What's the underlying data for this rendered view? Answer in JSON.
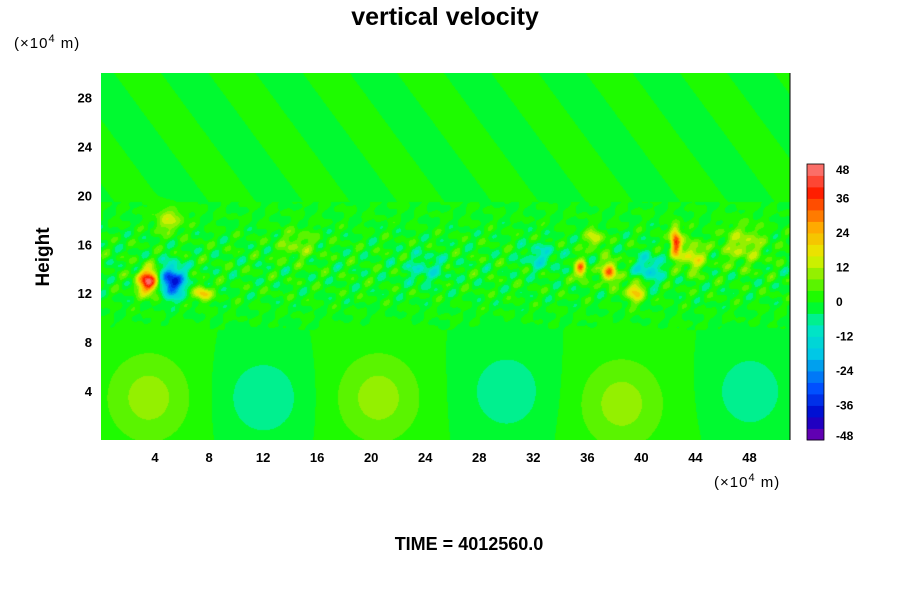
{
  "chart_data": {
    "type": "heatmap",
    "title": "vertical velocity",
    "ylabel": "Height",
    "x_unit_prefix": "(×10",
    "x_unit_exp": "4",
    "x_unit_suffix": " m)",
    "y_unit_prefix": "(×10",
    "y_unit_exp": "4",
    "y_unit_suffix": " m)",
    "xlim": [
      0,
      51
    ],
    "ylim": [
      0,
      30
    ],
    "x_ticks": [
      4,
      8,
      12,
      16,
      20,
      24,
      28,
      32,
      36,
      40,
      44,
      48
    ],
    "y_ticks": [
      4,
      8,
      12,
      16,
      20,
      24,
      28
    ],
    "colorbar": {
      "min": -48,
      "max": 48,
      "step": 4,
      "ticks": [
        48,
        36,
        24,
        12,
        0,
        -12,
        -24,
        -36,
        -48
      ]
    },
    "field_features": [
      {
        "kind": "band",
        "y_min": 9,
        "y_max": 19.5,
        "amplitude": 6
      },
      {
        "kind": "blob",
        "x": 3.5,
        "y": 13,
        "rx": 0.8,
        "ry": 1.0,
        "value": 44
      },
      {
        "kind": "blob",
        "x": 5.2,
        "y": 13,
        "rx": 0.9,
        "ry": 1.2,
        "value": -40
      },
      {
        "kind": "blob",
        "x": 7.5,
        "y": 12,
        "rx": 0.6,
        "ry": 0.6,
        "value": 24
      },
      {
        "kind": "blob",
        "x": 5,
        "y": 18,
        "rx": 1.0,
        "ry": 1.0,
        "value": 14
      },
      {
        "kind": "blob",
        "x": 3.5,
        "y": 3.5,
        "rx": 3.2,
        "ry": 3.8,
        "value": 10
      },
      {
        "kind": "blob",
        "x": 20.5,
        "y": 3.5,
        "rx": 3.2,
        "ry": 3.8,
        "value": 10
      },
      {
        "kind": "blob",
        "x": 38.5,
        "y": 3.0,
        "rx": 3.2,
        "ry": 3.8,
        "value": 10
      },
      {
        "kind": "blob",
        "x": 12,
        "y": 3.5,
        "rx": 2.8,
        "ry": 3.2,
        "value": -8
      },
      {
        "kind": "blob",
        "x": 30,
        "y": 4.0,
        "rx": 3.0,
        "ry": 3.5,
        "value": -7
      },
      {
        "kind": "blob",
        "x": 48,
        "y": 4.0,
        "rx": 2.5,
        "ry": 3.0,
        "value": -8
      },
      {
        "kind": "blob",
        "x": 35.5,
        "y": 14,
        "rx": 0.4,
        "ry": 0.8,
        "value": 30
      },
      {
        "kind": "blob",
        "x": 37.6,
        "y": 13.8,
        "rx": 0.5,
        "ry": 0.9,
        "value": 32
      },
      {
        "kind": "blob",
        "x": 39.5,
        "y": 12.2,
        "rx": 0.7,
        "ry": 0.9,
        "value": 22
      },
      {
        "kind": "blob",
        "x": 42.5,
        "y": 16.2,
        "rx": 0.4,
        "ry": 1.2,
        "value": 38
      },
      {
        "kind": "blob",
        "x": 43.8,
        "y": 15.0,
        "rx": 0.8,
        "ry": 1.2,
        "value": 18
      },
      {
        "kind": "blob",
        "x": 40.5,
        "y": 14.0,
        "rx": 1.0,
        "ry": 1.2,
        "value": -14
      },
      {
        "kind": "blob",
        "x": 36.5,
        "y": 16.5,
        "rx": 0.6,
        "ry": 0.8,
        "value": 16
      },
      {
        "kind": "blob",
        "x": 47.5,
        "y": 16.0,
        "rx": 1.6,
        "ry": 1.6,
        "value": 12
      },
      {
        "kind": "blob",
        "x": 32.5,
        "y": 15.0,
        "rx": 1.2,
        "ry": 1.0,
        "value": -10
      },
      {
        "kind": "blob",
        "x": 14.5,
        "y": 16.0,
        "rx": 1.5,
        "ry": 1.2,
        "value": 8
      },
      {
        "kind": "blob",
        "x": 24.0,
        "y": 14.0,
        "rx": 1.5,
        "ry": 1.2,
        "value": -8
      }
    ]
  },
  "time_label": "TIME = 4012560.0"
}
